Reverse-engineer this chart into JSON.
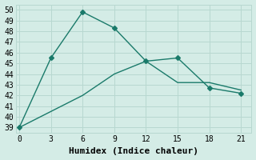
{
  "line1_x": [
    0,
    3,
    6,
    9,
    12,
    15,
    18,
    21
  ],
  "line1_y": [
    39,
    45.5,
    49.8,
    48.3,
    45.2,
    45.5,
    42.7,
    42.2
  ],
  "line2_x": [
    0,
    3,
    6,
    9,
    12,
    15,
    18,
    21
  ],
  "line2_y": [
    39,
    40.5,
    42.0,
    44.0,
    45.2,
    43.2,
    43.2,
    42.5
  ],
  "line_color": "#1a7a6a",
  "bg_color": "#d4ece6",
  "grid_color": "#b8d8d0",
  "xlabel": "Humidex (Indice chaleur)",
  "xlabel_fontsize": 8,
  "xticks": [
    0,
    3,
    6,
    9,
    12,
    15,
    18,
    21
  ],
  "yticks": [
    39,
    40,
    41,
    42,
    43,
    44,
    45,
    46,
    47,
    48,
    49,
    50
  ],
  "ylim": [
    38.5,
    50.5
  ],
  "xlim": [
    -0.3,
    22.0
  ]
}
